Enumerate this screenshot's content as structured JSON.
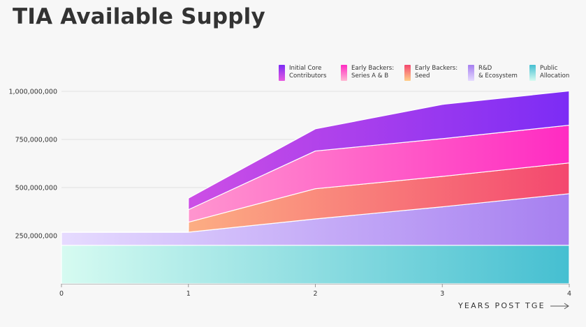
{
  "title": "TIA Available Supply",
  "chart_data": {
    "type": "area",
    "title": "TIA Available Supply",
    "xlabel": "YEARS POST TGE",
    "ylabel": "",
    "x_ticks": [
      "0",
      "1",
      "2",
      "3",
      "4"
    ],
    "y_ticks": [
      {
        "value": 250000000,
        "label": "250,000,000"
      },
      {
        "value": 500000000,
        "label": "500,000,000"
      },
      {
        "value": 750000000,
        "label": "750,000,000"
      },
      {
        "value": 1000000000,
        "label": "1,000,000,000"
      }
    ],
    "xlim": [
      0,
      4
    ],
    "ylim": [
      0,
      1000000000
    ],
    "stacked": true,
    "grid": "horizontal",
    "legend_position": "top-right",
    "series": [
      {
        "name": "Public Allocation",
        "legend_label": "Public\nAllocation",
        "colors": [
          "#d6fbf1",
          "#45bfd1"
        ],
        "points": [
          [
            0,
            200000000
          ],
          [
            4,
            200000000
          ]
        ]
      },
      {
        "name": "R&D & Ecosystem",
        "legend_label": "R&D\n& Ecosystem",
        "colors": [
          "#e6dbff",
          "#a67ff0"
        ],
        "points": [
          [
            0,
            68000000
          ],
          [
            1,
            68000000
          ],
          [
            2,
            137000000
          ],
          [
            3,
            200000000
          ],
          [
            4,
            268000000
          ]
        ]
      },
      {
        "name": "Early Backers: Seed",
        "legend_label": "Early Backers:\nSeed",
        "colors": [
          "#ffd08a",
          "#f4476f"
        ],
        "points": [
          [
            0,
            0
          ],
          [
            0.999,
            0
          ],
          [
            1,
            52000000
          ],
          [
            2,
            157000000
          ],
          [
            3,
            158000000
          ],
          [
            4,
            160000000
          ]
        ]
      },
      {
        "name": "Early Backers: Series A & B",
        "legend_label": "Early Backers:\nSeries A & B",
        "colors": [
          "#ffb9d3",
          "#ff2bc2"
        ],
        "points": [
          [
            0,
            0
          ],
          [
            0.999,
            0
          ],
          [
            1,
            65000000
          ],
          [
            2,
            196000000
          ],
          [
            3,
            196000000
          ],
          [
            4,
            196000000
          ]
        ]
      },
      {
        "name": "Initial Core Contributors",
        "legend_label": "Initial Core\nContributors",
        "colors": [
          "#e85ae0",
          "#7c2cf5"
        ],
        "points": [
          [
            0,
            0
          ],
          [
            0.999,
            0
          ],
          [
            1,
            60000000
          ],
          [
            2,
            115000000
          ],
          [
            3,
            178000000
          ],
          [
            4,
            178000000
          ]
        ]
      }
    ]
  }
}
